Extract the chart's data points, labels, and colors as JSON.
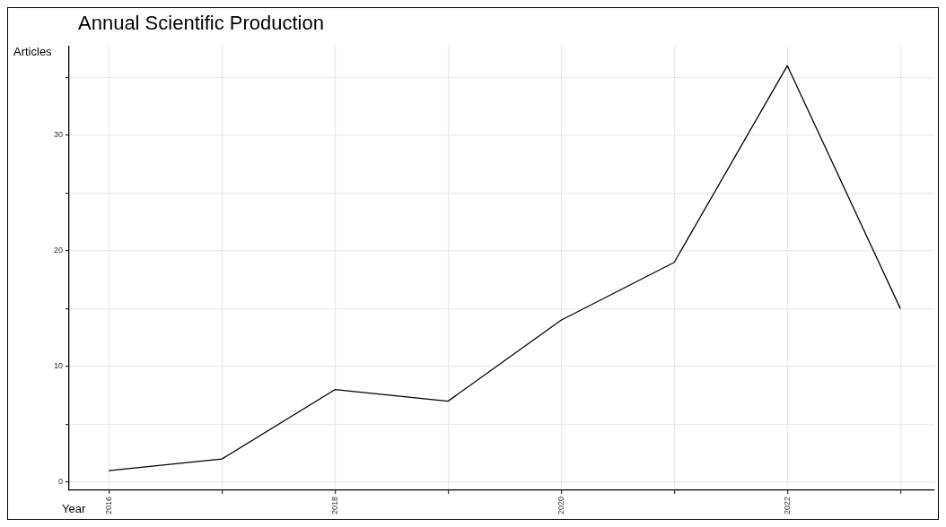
{
  "chart_data": {
    "type": "line",
    "title": "Annual Scientific Production",
    "xlabel": "Year",
    "ylabel": "Articles",
    "x": [
      2016,
      2017,
      2018,
      2019,
      2020,
      2021,
      2022,
      2023
    ],
    "series": [
      {
        "color": "#000000",
        "values": [
          1,
          2,
          8,
          7,
          14,
          19,
          36,
          15
        ]
      }
    ],
    "xlim": [
      2015.65,
      2023.3
    ],
    "xticks": [
      2016,
      {
        "value": 2017,
        "label": null
      },
      2018,
      {
        "value": 2019,
        "label": null
      },
      2020,
      {
        "value": 2021,
        "label": null
      },
      2022,
      {
        "value": 2023,
        "label": null
      }
    ],
    "ylim": [
      -0.7,
      37.7
    ],
    "yticks": [
      0,
      {
        "value": 5,
        "label": null
      },
      10,
      {
        "value": 15,
        "label": null
      },
      20,
      {
        "value": 25,
        "label": null
      },
      30,
      {
        "value": 35,
        "label": null
      }
    ],
    "grid": true,
    "legend": false,
    "marker": "none",
    "line_style": "solid"
  }
}
